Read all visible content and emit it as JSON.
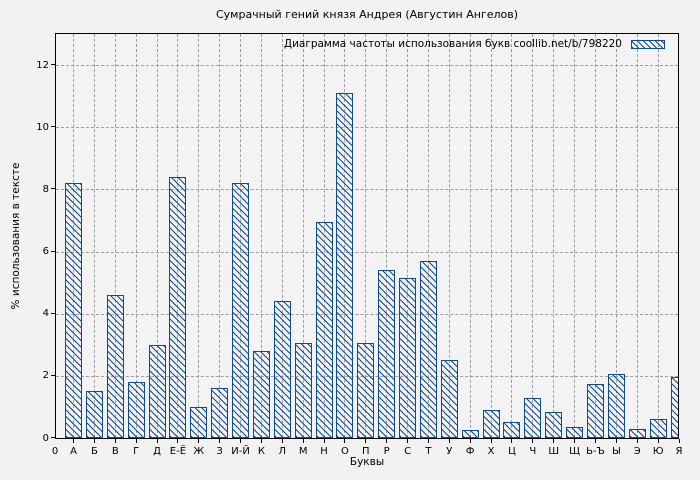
{
  "chart_data": {
    "type": "bar",
    "title": "Сумрачный гений князя Андрея (Августин Ангелов)",
    "legend_label": "Диаграмма частоты использования букв coollib.net/b/798220",
    "legend_position": "top-right-inside",
    "xlabel": "Буквы",
    "ylabel": "% использования в тексте",
    "x_origin_tick_label": "0",
    "categories": [
      "А",
      "Б",
      "В",
      "Г",
      "Д",
      "Е-Ё",
      "Ж",
      "З",
      "И-Й",
      "К",
      "Л",
      "М",
      "Н",
      "О",
      "П",
      "Р",
      "С",
      "Т",
      "У",
      "Ф",
      "Х",
      "Ц",
      "Ч",
      "Ш",
      "Щ",
      "Ь-Ъ",
      "Ы",
      "Э",
      "Ю",
      "Я"
    ],
    "values": [
      8.2,
      1.5,
      4.6,
      1.8,
      3.0,
      8.4,
      1.0,
      1.6,
      8.2,
      2.8,
      4.4,
      3.05,
      6.95,
      11.1,
      3.05,
      5.4,
      5.15,
      5.7,
      2.5,
      0.25,
      0.9,
      0.5,
      1.3,
      0.85,
      0.35,
      1.75,
      2.05,
      0.3,
      0.6,
      1.95
    ],
    "y_ticks": [
      0,
      2,
      4,
      6,
      8,
      10,
      12
    ],
    "ylim": [
      0,
      13
    ],
    "grid": true,
    "bar_style": {
      "fill": "diagonal-hatch",
      "hatch_direction": "top-left-to-bottom-right",
      "color": "#0c4aa0"
    },
    "colors": {
      "background": "#f2f2f2",
      "plot_background": "#f3f3f3",
      "gridline": "#9e9e9e",
      "axis": "#000000",
      "text": "#000000",
      "bar": "#0c4aa0"
    }
  }
}
